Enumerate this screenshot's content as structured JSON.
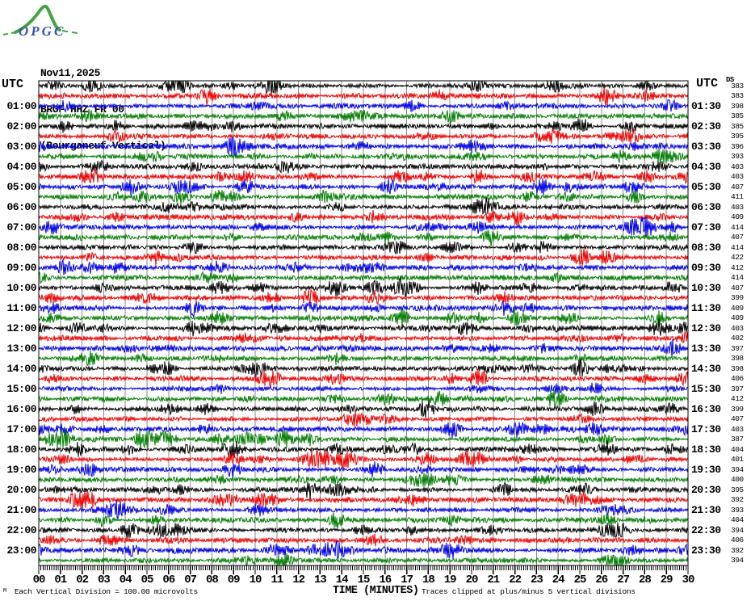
{
  "header": {
    "logo_text": "OPGC",
    "date": "Nov11,2025",
    "station_code": "BRGF HHZ FR 00",
    "station_desc": "(Bourganeuf Vertical)",
    "utc_left": "UTC",
    "utc_right": "UTC",
    "ds_label": "DS"
  },
  "axis": {
    "xlabel": "TIME (MINUTES)",
    "minute_labels": [
      "00",
      "01",
      "02",
      "03",
      "04",
      "05",
      "06",
      "07",
      "08",
      "09",
      "10",
      "11",
      "12",
      "13",
      "14",
      "15",
      "16",
      "17",
      "18",
      "19",
      "20",
      "21",
      "22",
      "23",
      "24",
      "25",
      "26",
      "27",
      "28",
      "29",
      "30"
    ]
  },
  "footer": {
    "margin_mark": "M",
    "scale_note": "Each Vertical Division =  100.00 microvolts",
    "clip_note": "Traces clipped at plus/minus 5 vertical divisions"
  },
  "colors": {
    "trace_cycle": {
      "black": "#000000",
      "red": "#ee0000",
      "blue": "#0000e6",
      "green": "#007c00"
    },
    "grid_line": "#8a8a8a",
    "border": "#000000",
    "logo_green": "#44a340",
    "logo_blue": "#3b54b4",
    "background": "#ffffff"
  },
  "chart_data": {
    "type": "line",
    "subtype": "helicorder-seismogram",
    "title": "BRGF HHZ FR 00 (Bourganeuf Vertical) Nov11,2025",
    "xlabel": "TIME (MINUTES)",
    "x_range": [
      0,
      30
    ],
    "x_tick_step_minutes": 1,
    "minor_tick_step_minutes": 0.1,
    "row_duration_minutes": 30,
    "rows_count": 48,
    "grid": "vertical gray line every 1 minute",
    "scale_note": "Each Vertical Division =  100.00 microvolts",
    "clip_note": "Traces clipped at plus/minus 5 vertical divisions",
    "color_cycle": [
      "black",
      "red",
      "blue",
      "green"
    ],
    "rows": [
      {
        "start": "00:00",
        "end": "00:30",
        "color": "black",
        "ds": 383
      },
      {
        "start": "00:30",
        "end": "01:00",
        "color": "red",
        "ds": 383
      },
      {
        "start": "01:00",
        "end": "01:30",
        "color": "blue",
        "ds": 398,
        "left_label": "01:00",
        "right_label": "01:30"
      },
      {
        "start": "01:30",
        "end": "02:00",
        "color": "green",
        "ds": 385
      },
      {
        "start": "02:00",
        "end": "02:30",
        "color": "black",
        "ds": 385,
        "left_label": "02:00",
        "right_label": "02:30"
      },
      {
        "start": "02:30",
        "end": "03:00",
        "color": "red",
        "ds": 395
      },
      {
        "start": "03:00",
        "end": "03:30",
        "color": "blue",
        "ds": 396,
        "left_label": "03:00",
        "right_label": "03:30"
      },
      {
        "start": "03:30",
        "end": "04:00",
        "color": "green",
        "ds": 393
      },
      {
        "start": "04:00",
        "end": "04:30",
        "color": "black",
        "ds": 403,
        "left_label": "04:00",
        "right_label": "04:30"
      },
      {
        "start": "04:30",
        "end": "05:00",
        "color": "red",
        "ds": 403
      },
      {
        "start": "05:00",
        "end": "05:30",
        "color": "blue",
        "ds": 407,
        "left_label": "05:00",
        "right_label": "05:30"
      },
      {
        "start": "05:30",
        "end": "06:00",
        "color": "green",
        "ds": 411
      },
      {
        "start": "06:00",
        "end": "06:30",
        "color": "black",
        "ds": 403,
        "left_label": "06:00",
        "right_label": "06:30"
      },
      {
        "start": "06:30",
        "end": "07:00",
        "color": "red",
        "ds": 409
      },
      {
        "start": "07:00",
        "end": "07:30",
        "color": "blue",
        "ds": 414,
        "left_label": "07:00",
        "right_label": "07:30"
      },
      {
        "start": "07:30",
        "end": "08:00",
        "color": "green",
        "ds": 407
      },
      {
        "start": "08:00",
        "end": "08:30",
        "color": "black",
        "ds": 414,
        "left_label": "08:00",
        "right_label": "08:30"
      },
      {
        "start": "08:30",
        "end": "09:00",
        "color": "red",
        "ds": 422
      },
      {
        "start": "09:00",
        "end": "09:30",
        "color": "blue",
        "ds": 412,
        "left_label": "09:00",
        "right_label": "09:30"
      },
      {
        "start": "09:30",
        "end": "10:00",
        "color": "green",
        "ds": 414
      },
      {
        "start": "10:00",
        "end": "10:30",
        "color": "black",
        "ds": 407,
        "left_label": "10:00",
        "right_label": "10:30"
      },
      {
        "start": "10:30",
        "end": "11:00",
        "color": "red",
        "ds": 399
      },
      {
        "start": "11:00",
        "end": "11:30",
        "color": "blue",
        "ds": 409,
        "left_label": "11:00",
        "right_label": "11:30"
      },
      {
        "start": "11:30",
        "end": "12:00",
        "color": "green",
        "ds": 409
      },
      {
        "start": "12:00",
        "end": "12:30",
        "color": "black",
        "ds": 403,
        "left_label": "12:00",
        "right_label": "12:30"
      },
      {
        "start": "12:30",
        "end": "13:00",
        "color": "red",
        "ds": 402
      },
      {
        "start": "13:00",
        "end": "13:30",
        "color": "blue",
        "ds": 397,
        "left_label": "13:00",
        "right_label": "13:30"
      },
      {
        "start": "13:30",
        "end": "14:00",
        "color": "green",
        "ds": 398
      },
      {
        "start": "14:00",
        "end": "14:30",
        "color": "black",
        "ds": 398,
        "left_label": "14:00",
        "right_label": "14:30"
      },
      {
        "start": "14:30",
        "end": "15:00",
        "color": "red",
        "ds": 406
      },
      {
        "start": "15:00",
        "end": "15:30",
        "color": "blue",
        "ds": 397,
        "left_label": "15:00",
        "right_label": "15:30"
      },
      {
        "start": "15:30",
        "end": "16:00",
        "color": "green",
        "ds": 412
      },
      {
        "start": "16:00",
        "end": "16:30",
        "color": "black",
        "ds": 399,
        "left_label": "16:00",
        "right_label": "16:30"
      },
      {
        "start": "16:30",
        "end": "17:00",
        "color": "red",
        "ds": 407
      },
      {
        "start": "17:00",
        "end": "17:30",
        "color": "blue",
        "ds": 403,
        "left_label": "17:00",
        "right_label": "17:30"
      },
      {
        "start": "17:30",
        "end": "18:00",
        "color": "green",
        "ds": 387
      },
      {
        "start": "18:00",
        "end": "18:30",
        "color": "black",
        "ds": 404,
        "left_label": "18:00",
        "right_label": "18:30"
      },
      {
        "start": "18:30",
        "end": "19:00",
        "color": "red",
        "ds": 401
      },
      {
        "start": "19:00",
        "end": "19:30",
        "color": "blue",
        "ds": 394,
        "left_label": "19:00",
        "right_label": "19:30"
      },
      {
        "start": "19:30",
        "end": "20:00",
        "color": "green",
        "ds": 400
      },
      {
        "start": "20:00",
        "end": "20:30",
        "color": "black",
        "ds": 395,
        "left_label": "20:00",
        "right_label": "20:30"
      },
      {
        "start": "20:30",
        "end": "21:00",
        "color": "red",
        "ds": 392
      },
      {
        "start": "21:00",
        "end": "21:30",
        "color": "blue",
        "ds": 393,
        "left_label": "21:00",
        "right_label": "21:30"
      },
      {
        "start": "21:30",
        "end": "22:00",
        "color": "green",
        "ds": 404
      },
      {
        "start": "22:00",
        "end": "22:30",
        "color": "black",
        "ds": 394,
        "left_label": "22:00",
        "right_label": "22:30"
      },
      {
        "start": "22:30",
        "end": "23:00",
        "color": "red",
        "ds": 406
      },
      {
        "start": "23:00",
        "end": "23:30",
        "color": "blue",
        "ds": 392,
        "left_label": "23:00",
        "right_label": "23:30"
      },
      {
        "start": "23:30",
        "end": "24:00",
        "color": "green",
        "ds": 394
      }
    ]
  }
}
